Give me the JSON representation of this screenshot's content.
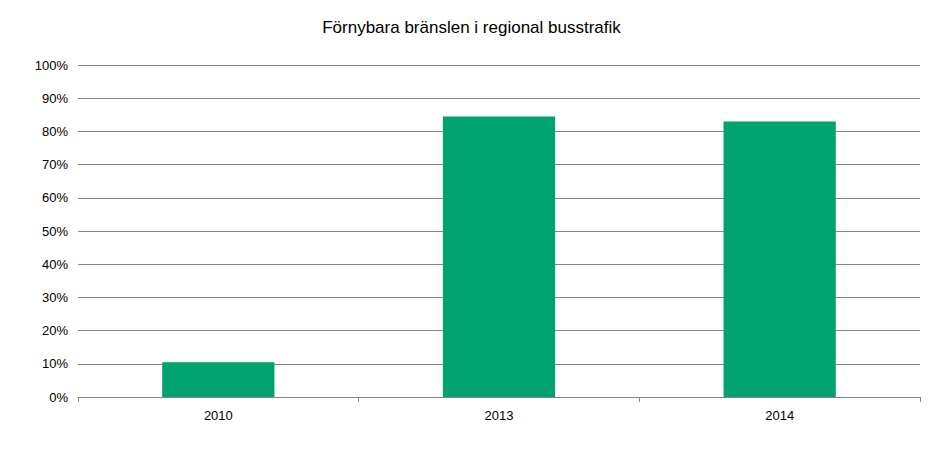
{
  "chart_data": {
    "type": "bar",
    "title": "Förnybara bränslen i regional busstrafik",
    "categories": [
      "2010",
      "2013",
      "2014"
    ],
    "values": [
      10.5,
      84.5,
      83
    ],
    "color": "#00a36f",
    "ylim": [
      0,
      100
    ],
    "yticks": [
      {
        "value": 0,
        "label": "0%"
      },
      {
        "value": 10,
        "label": "10%"
      },
      {
        "value": 20,
        "label": "20%"
      },
      {
        "value": 30,
        "label": "30%"
      },
      {
        "value": 40,
        "label": "40%"
      },
      {
        "value": 50,
        "label": "50%"
      },
      {
        "value": 60,
        "label": "60%"
      },
      {
        "value": 70,
        "label": "70%"
      },
      {
        "value": 80,
        "label": "80%"
      },
      {
        "value": 90,
        "label": "90%"
      },
      {
        "value": 100,
        "label": "100%"
      }
    ],
    "grid": true
  }
}
